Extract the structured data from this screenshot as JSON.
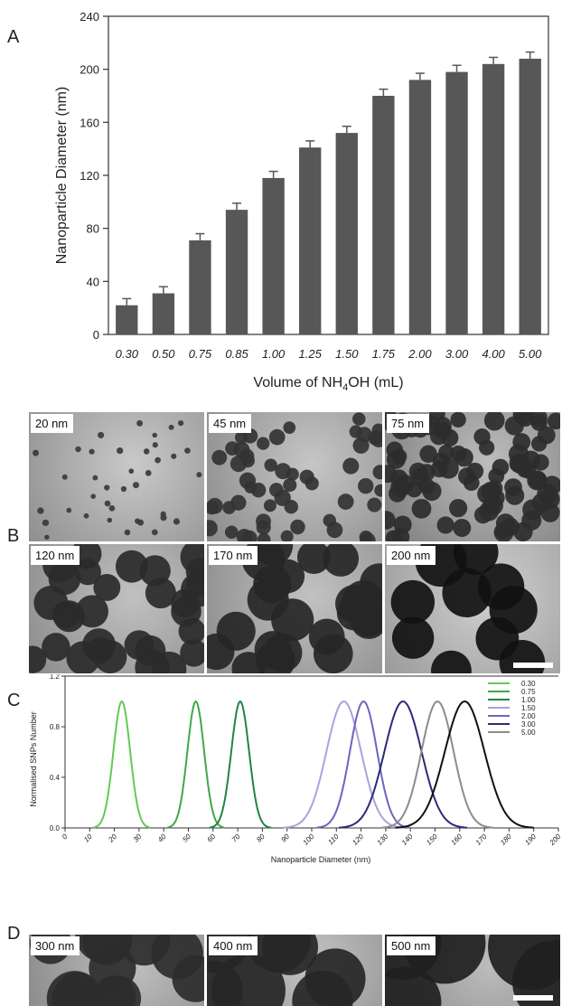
{
  "panels": {
    "a": "A",
    "b": "B",
    "c": "C",
    "d": "D"
  },
  "chart_data": [
    {
      "type": "bar",
      "panel": "A",
      "categories": [
        "0.30",
        "0.50",
        "0.75",
        "0.85",
        "1.00",
        "1.25",
        "1.50",
        "1.75",
        "2.00",
        "3.00",
        "4.00",
        "5.00"
      ],
      "values": [
        22,
        31,
        71,
        94,
        118,
        141,
        152,
        180,
        192,
        198,
        204,
        208
      ],
      "errors": [
        5,
        5,
        5,
        5,
        5,
        5,
        5,
        5,
        5,
        5,
        5,
        5
      ],
      "ylabel": "Nanoparticle Diameter (nm)",
      "xlabel_parts": [
        "Volume of NH",
        "4",
        "OH (mL)"
      ],
      "ylim": [
        0,
        240
      ],
      "yticks": [
        0,
        40,
        80,
        120,
        160,
        200,
        240
      ],
      "bar_color": "#575757",
      "grid": false
    },
    {
      "type": "line",
      "panel": "C",
      "ylabel": "Normalised SNPs Number",
      "xlabel": "Nanoparticle Diameter (nm)",
      "xlim": [
        0,
        200
      ],
      "ylim": [
        0,
        1.2
      ],
      "xticks": [
        0,
        10,
        20,
        30,
        40,
        50,
        60,
        70,
        80,
        90,
        100,
        110,
        120,
        130,
        140,
        150,
        160,
        170,
        180,
        190,
        200
      ],
      "yticks": [
        "0.0",
        "0.4",
        "0.8",
        "1.2"
      ],
      "legend_position": "top-right",
      "grid": false,
      "series": [
        {
          "name": "0.30",
          "peak": 23,
          "width": 3.4,
          "color": "#66c85a"
        },
        {
          "name": "0.75",
          "peak": 53,
          "width": 3.4,
          "color": "#3caa4a"
        },
        {
          "name": "1.00",
          "peak": 71,
          "width": 3.6,
          "color": "#238540"
        },
        {
          "name": "1.50",
          "peak": 113,
          "width": 7.0,
          "color": "#a9a3dc"
        },
        {
          "name": "2.00",
          "peak": 121,
          "width": 5.5,
          "color": "#6d65bf"
        },
        {
          "name": "3.00",
          "peak": 137,
          "width": 7.5,
          "color": "#2b2a78"
        },
        {
          "name": "5.00",
          "peak": 151,
          "width": 6.5,
          "color": "#8c8c8c"
        },
        {
          "name": "",
          "peak": 162,
          "width": 8.0,
          "color": "#111111"
        }
      ]
    }
  ],
  "micrographs_b": [
    {
      "label": "20 nm"
    },
    {
      "label": "45 nm"
    },
    {
      "label": "75 nm"
    },
    {
      "label": "120 nm"
    },
    {
      "label": "170 nm"
    },
    {
      "label": "200 nm"
    }
  ],
  "micrographs_d": [
    {
      "label": "300 nm"
    },
    {
      "label": "400 nm"
    },
    {
      "label": "500 nm"
    }
  ]
}
